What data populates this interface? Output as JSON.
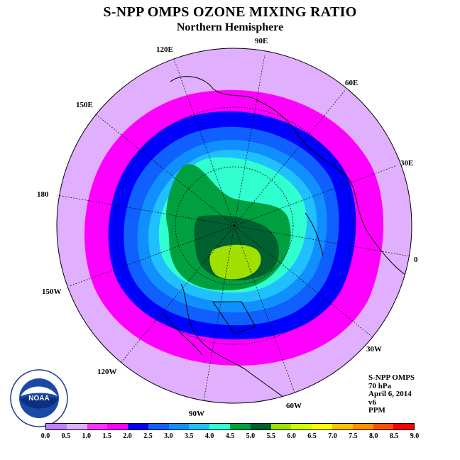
{
  "title": "S-NPP OMPS OZONE MIXING RATIO",
  "subtitle": "Northern Hemisphere",
  "longitude_labels": [
    "90E",
    "60E",
    "30E",
    "0",
    "30W",
    "60W",
    "90W",
    "120W",
    "150W",
    "180",
    "150E",
    "120E"
  ],
  "meta": {
    "instrument": "S-NPP OMPS",
    "level": "70 hPa",
    "date": "April 6, 2014",
    "version": "v6",
    "units": "PPM"
  },
  "logo": {
    "text": "NOAA",
    "icon": "noaa-logo"
  },
  "colorbar": {
    "ticks": [
      "0.0",
      "0.5",
      "1.0",
      "1.5",
      "2.0",
      "2.5",
      "3.0",
      "3.5",
      "4.0",
      "4.5",
      "5.0",
      "5.5",
      "6.0",
      "6.5",
      "7.0",
      "7.5",
      "8.0",
      "8.5",
      "9.0"
    ],
    "colors": [
      "#c080ff",
      "#e0b0ff",
      "#ff30ff",
      "#ff00ff",
      "#0000ff",
      "#1060ff",
      "#1090ff",
      "#20c0ff",
      "#30ffd0",
      "#00a040",
      "#006030",
      "#a0e000",
      "#d0ff00",
      "#ffff00",
      "#ffc000",
      "#ff9000",
      "#ff5000",
      "#ff0000",
      "#804020"
    ]
  },
  "map_colors": {
    "background_disk": "#e0b0ff",
    "level_1_5": "#ff00ff",
    "level_2_0": "#0000ff",
    "level_2_5": "#1060ff",
    "level_3_0": "#1090ff",
    "level_3_5": "#20c0ff",
    "level_4_0": "#30ffd0",
    "level_4_5": "#00a040",
    "level_5_0": "#006030",
    "level_5_5": "#a0e000"
  }
}
